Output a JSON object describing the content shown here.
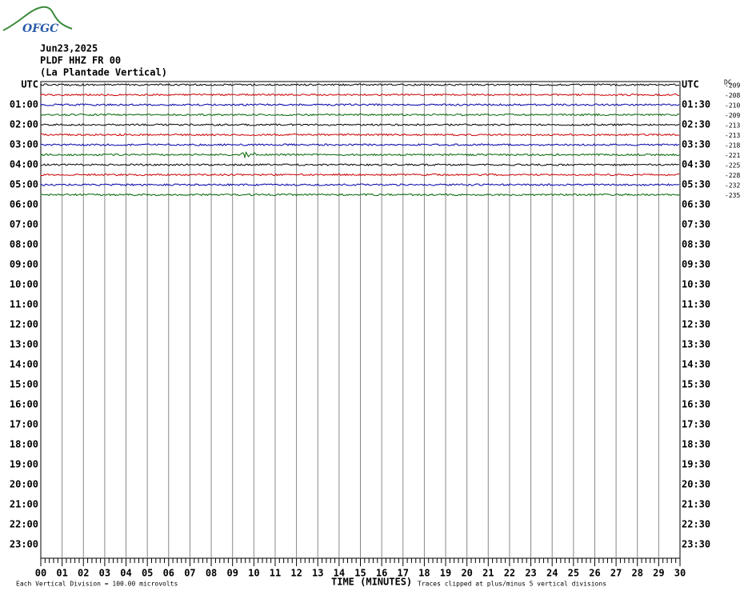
{
  "logo_text": "OFGC",
  "header": {
    "date": "Jun23,2025",
    "station": "PLDF HHZ FR 00",
    "location": "(La Plantade Vertical)"
  },
  "left_labels": [
    "UTC",
    "01:00",
    "02:00",
    "03:00",
    "04:00",
    "05:00",
    "06:00",
    "07:00",
    "08:00",
    "09:00",
    "10:00",
    "11:00",
    "12:00",
    "13:00",
    "14:00",
    "15:00",
    "16:00",
    "17:00",
    "18:00",
    "19:00",
    "20:00",
    "21:00",
    "22:00",
    "23:00"
  ],
  "right_labels": [
    "UTC",
    "01:30",
    "02:30",
    "03:30",
    "04:30",
    "05:30",
    "06:30",
    "07:30",
    "08:30",
    "09:30",
    "10:30",
    "11:30",
    "12:30",
    "13:30",
    "14:30",
    "15:30",
    "16:30",
    "17:30",
    "18:30",
    "19:30",
    "20:30",
    "21:30",
    "22:30",
    "23:30"
  ],
  "dc_title": "DC",
  "dc_values": [
    "-209",
    "-208",
    "-210",
    "-209",
    "-213",
    "-213",
    "-218",
    "-221",
    "-225",
    "-228",
    "-232",
    "-235"
  ],
  "trace_colors": [
    "#000000",
    "#cc0000",
    "#0000aa",
    "#006600",
    "#000000",
    "#cc0000",
    "#0000aa",
    "#006600",
    "#000000",
    "#cc0000",
    "#0000aa",
    "#006600"
  ],
  "minute_labels": [
    "00",
    "01",
    "02",
    "03",
    "04",
    "05",
    "06",
    "07",
    "08",
    "09",
    "10",
    "11",
    "12",
    "13",
    "14",
    "15",
    "16",
    "17",
    "18",
    "19",
    "20",
    "21",
    "22",
    "23",
    "24",
    "25",
    "26",
    "27",
    "28",
    "29",
    "30"
  ],
  "footer": {
    "scale": "Each Vertical Division =  100.00 microvolts",
    "axis_title": "TIME (MINUTES)",
    "clip": "Traces clipped at plus/minus 5 vertical divisions"
  }
}
